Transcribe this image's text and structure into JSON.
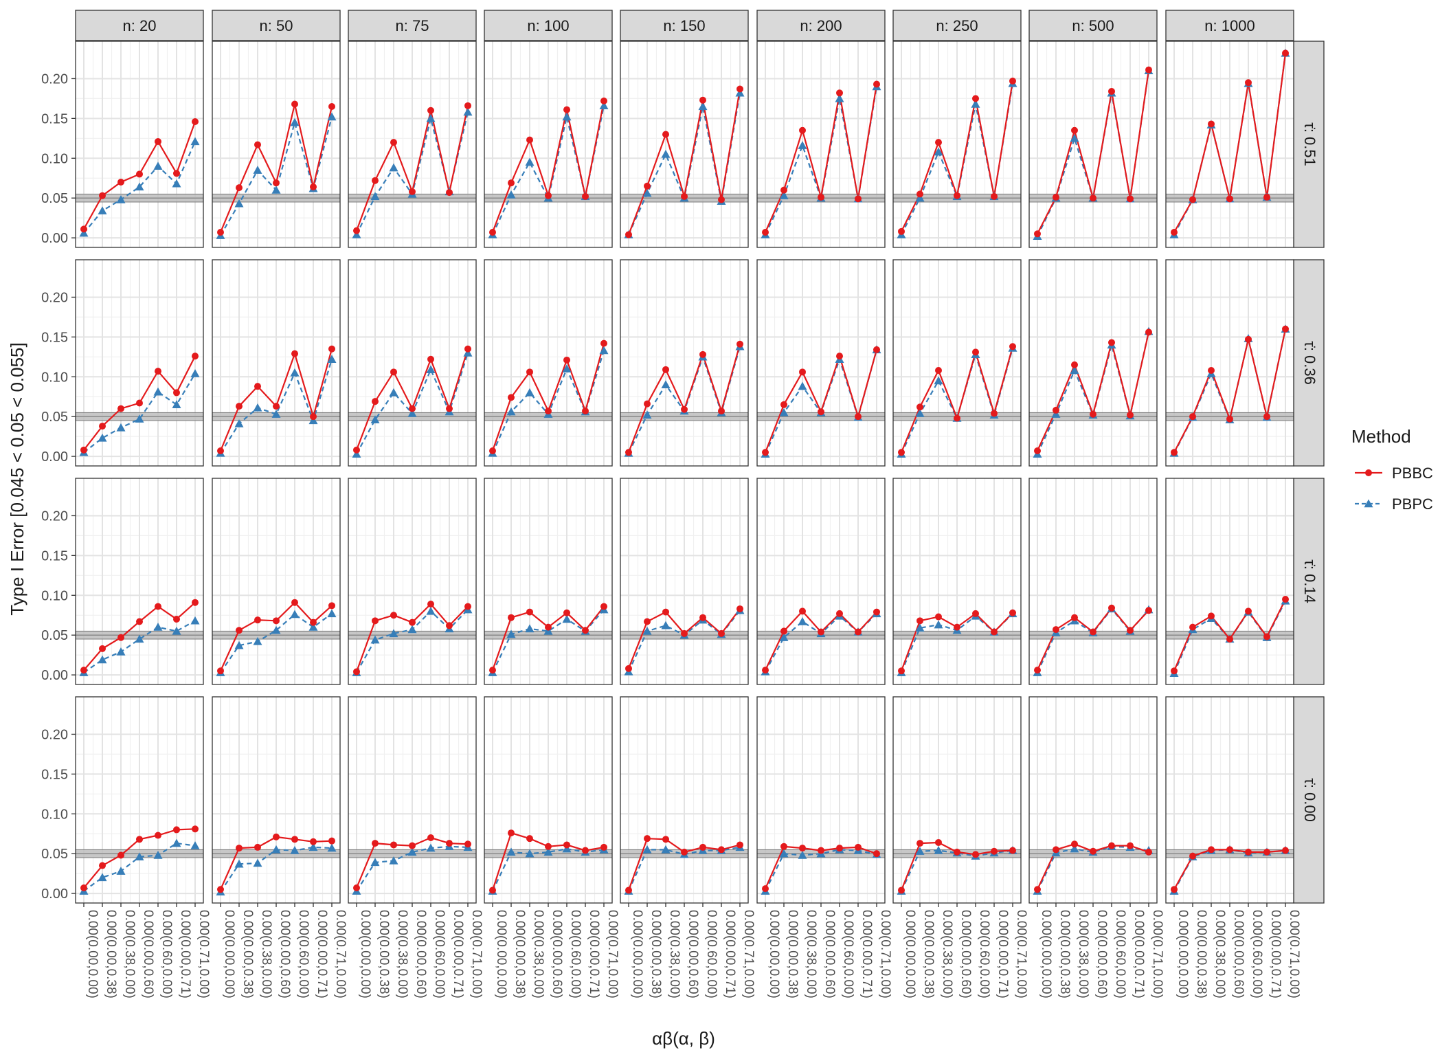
{
  "chart_data": {
    "type": "line",
    "ylabel": "Type I Error [0.045 < 0.05 < 0.055]",
    "xlabel": "αβ(α, β)",
    "ylim": [
      -0.012,
      0.247
    ],
    "y_ticks": [
      "0.00",
      "0.05",
      "0.10",
      "0.15",
      "0.20"
    ],
    "y_tick_values": [
      0,
      0.05,
      0.1,
      0.15,
      0.2
    ],
    "categories": [
      "0.00(0.00,0.00)",
      "0.00(0.00,0.38)",
      "0.00(0.38,0.00)",
      "0.00(0.00,0.60)",
      "0.00(0.60,0.00)",
      "0.00(0.00,0.71)",
      "0.00(0.71,0.00)"
    ],
    "reference_band": [
      0.045,
      0.055
    ],
    "reference_line": 0.05,
    "grid": true,
    "legend": {
      "title": "Method",
      "position": "right",
      "entries": [
        {
          "name": "PBBC",
          "color": "#e41a1c",
          "marker": "circle",
          "line": "solid"
        },
        {
          "name": "PBPC",
          "color": "#377eb8",
          "marker": "triangle",
          "line": "dashed"
        }
      ]
    },
    "col_facets": [
      "n: 20",
      "n: 50",
      "n: 75",
      "n: 100",
      "n: 150",
      "n: 200",
      "n: 250",
      "n: 500",
      "n: 1000"
    ],
    "row_facets": [
      "τ̇: 0.51",
      "τ̇: 0.36",
      "τ̇: 0.14",
      "τ̇: 0.00"
    ],
    "panels": [
      [
        {
          "PBBC": [
            0.011,
            0.053,
            0.07,
            0.08,
            0.121,
            0.081,
            0.146
          ],
          "PBPC": [
            0.006,
            0.034,
            0.048,
            0.064,
            0.09,
            0.068,
            0.121
          ]
        },
        {
          "PBBC": [
            0.007,
            0.063,
            0.117,
            0.069,
            0.168,
            0.064,
            0.165
          ],
          "PBPC": [
            0.003,
            0.043,
            0.085,
            0.06,
            0.145,
            0.062,
            0.152
          ]
        },
        {
          "PBBC": [
            0.009,
            0.072,
            0.12,
            0.058,
            0.16,
            0.057,
            0.166
          ],
          "PBPC": [
            0.004,
            0.052,
            0.088,
            0.055,
            0.15,
            0.058,
            0.158
          ]
        },
        {
          "PBBC": [
            0.007,
            0.069,
            0.123,
            0.053,
            0.161,
            0.052,
            0.172
          ],
          "PBPC": [
            0.004,
            0.054,
            0.095,
            0.05,
            0.152,
            0.052,
            0.166
          ]
        },
        {
          "PBBC": [
            0.004,
            0.065,
            0.13,
            0.052,
            0.173,
            0.048,
            0.187
          ],
          "PBPC": [
            0.004,
            0.056,
            0.105,
            0.05,
            0.165,
            0.046,
            0.182
          ]
        },
        {
          "PBBC": [
            0.007,
            0.06,
            0.135,
            0.051,
            0.182,
            0.049,
            0.193
          ],
          "PBPC": [
            0.004,
            0.053,
            0.116,
            0.05,
            0.175,
            0.049,
            0.19
          ]
        },
        {
          "PBBC": [
            0.008,
            0.055,
            0.12,
            0.053,
            0.175,
            0.052,
            0.197
          ],
          "PBPC": [
            0.004,
            0.05,
            0.108,
            0.052,
            0.168,
            0.052,
            0.194
          ]
        },
        {
          "PBBC": [
            0.005,
            0.051,
            0.135,
            0.05,
            0.184,
            0.049,
            0.211
          ],
          "PBPC": [
            0.002,
            0.05,
            0.125,
            0.05,
            0.182,
            0.049,
            0.21
          ]
        },
        {
          "PBBC": [
            0.007,
            0.048,
            0.143,
            0.049,
            0.195,
            0.051,
            0.232
          ],
          "PBPC": [
            0.004,
            0.048,
            0.142,
            0.049,
            0.194,
            0.051,
            0.232
          ]
        }
      ],
      [
        {
          "PBBC": [
            0.008,
            0.038,
            0.06,
            0.067,
            0.107,
            0.08,
            0.126
          ],
          "PBPC": [
            0.005,
            0.023,
            0.036,
            0.047,
            0.081,
            0.065,
            0.104
          ]
        },
        {
          "PBBC": [
            0.007,
            0.063,
            0.088,
            0.063,
            0.129,
            0.05,
            0.135
          ],
          "PBPC": [
            0.004,
            0.041,
            0.061,
            0.053,
            0.105,
            0.045,
            0.122
          ]
        },
        {
          "PBBC": [
            0.008,
            0.069,
            0.106,
            0.06,
            0.122,
            0.06,
            0.135
          ],
          "PBPC": [
            0.003,
            0.046,
            0.08,
            0.054,
            0.109,
            0.056,
            0.13
          ]
        },
        {
          "PBBC": [
            0.007,
            0.074,
            0.106,
            0.057,
            0.121,
            0.057,
            0.142
          ],
          "PBPC": [
            0.004,
            0.056,
            0.08,
            0.053,
            0.11,
            0.056,
            0.133
          ]
        },
        {
          "PBBC": [
            0.005,
            0.066,
            0.109,
            0.059,
            0.128,
            0.057,
            0.141
          ],
          "PBPC": [
            0.004,
            0.052,
            0.09,
            0.057,
            0.125,
            0.055,
            0.138
          ]
        },
        {
          "PBBC": [
            0.005,
            0.065,
            0.106,
            0.056,
            0.126,
            0.05,
            0.134
          ],
          "PBPC": [
            0.003,
            0.055,
            0.088,
            0.055,
            0.122,
            0.049,
            0.134
          ]
        },
        {
          "PBBC": [
            0.005,
            0.062,
            0.108,
            0.048,
            0.131,
            0.054,
            0.138
          ],
          "PBPC": [
            0.003,
            0.054,
            0.095,
            0.048,
            0.128,
            0.052,
            0.136
          ]
        },
        {
          "PBBC": [
            0.007,
            0.058,
            0.115,
            0.053,
            0.143,
            0.052,
            0.156
          ],
          "PBPC": [
            0.003,
            0.053,
            0.108,
            0.052,
            0.14,
            0.051,
            0.157
          ]
        },
        {
          "PBBC": [
            0.005,
            0.05,
            0.108,
            0.047,
            0.147,
            0.05,
            0.16
          ],
          "PBPC": [
            0.004,
            0.049,
            0.104,
            0.046,
            0.148,
            0.049,
            0.16
          ]
        }
      ],
      [
        {
          "PBBC": [
            0.006,
            0.033,
            0.047,
            0.067,
            0.086,
            0.07,
            0.091
          ],
          "PBPC": [
            0.003,
            0.019,
            0.029,
            0.045,
            0.06,
            0.055,
            0.068
          ]
        },
        {
          "PBBC": [
            0.005,
            0.056,
            0.069,
            0.068,
            0.091,
            0.066,
            0.087
          ],
          "PBPC": [
            0.003,
            0.037,
            0.042,
            0.056,
            0.076,
            0.06,
            0.077
          ]
        },
        {
          "PBBC": [
            0.004,
            0.068,
            0.075,
            0.066,
            0.089,
            0.062,
            0.086
          ],
          "PBPC": [
            0.003,
            0.044,
            0.052,
            0.057,
            0.08,
            0.058,
            0.082
          ]
        },
        {
          "PBBC": [
            0.006,
            0.072,
            0.079,
            0.06,
            0.078,
            0.056,
            0.086
          ],
          "PBPC": [
            0.003,
            0.051,
            0.058,
            0.055,
            0.07,
            0.055,
            0.082
          ]
        },
        {
          "PBBC": [
            0.008,
            0.067,
            0.079,
            0.052,
            0.072,
            0.052,
            0.083
          ],
          "PBPC": [
            0.004,
            0.055,
            0.062,
            0.05,
            0.069,
            0.051,
            0.081
          ]
        },
        {
          "PBBC": [
            0.006,
            0.055,
            0.08,
            0.054,
            0.077,
            0.054,
            0.079
          ],
          "PBPC": [
            0.004,
            0.047,
            0.067,
            0.052,
            0.074,
            0.054,
            0.077
          ]
        },
        {
          "PBBC": [
            0.005,
            0.068,
            0.073,
            0.06,
            0.077,
            0.054,
            0.078
          ],
          "PBPC": [
            0.003,
            0.059,
            0.063,
            0.056,
            0.074,
            0.054,
            0.077
          ]
        },
        {
          "PBBC": [
            0.006,
            0.057,
            0.072,
            0.054,
            0.084,
            0.056,
            0.081
          ],
          "PBPC": [
            0.003,
            0.053,
            0.068,
            0.053,
            0.083,
            0.055,
            0.082
          ]
        },
        {
          "PBBC": [
            0.005,
            0.06,
            0.074,
            0.045,
            0.08,
            0.048,
            0.095
          ],
          "PBPC": [
            0.002,
            0.057,
            0.071,
            0.045,
            0.079,
            0.047,
            0.093
          ]
        }
      ],
      [
        {
          "PBBC": [
            0.007,
            0.035,
            0.048,
            0.068,
            0.073,
            0.08,
            0.081
          ],
          "PBPC": [
            0.003,
            0.02,
            0.028,
            0.046,
            0.048,
            0.063,
            0.06
          ]
        },
        {
          "PBBC": [
            0.005,
            0.057,
            0.058,
            0.071,
            0.068,
            0.065,
            0.066
          ],
          "PBPC": [
            0.002,
            0.037,
            0.038,
            0.055,
            0.054,
            0.058,
            0.057
          ]
        },
        {
          "PBBC": [
            0.007,
            0.063,
            0.061,
            0.06,
            0.07,
            0.063,
            0.062
          ],
          "PBPC": [
            0.003,
            0.039,
            0.041,
            0.052,
            0.057,
            0.059,
            0.058
          ]
        },
        {
          "PBBC": [
            0.004,
            0.076,
            0.069,
            0.059,
            0.061,
            0.054,
            0.058
          ],
          "PBPC": [
            0.003,
            0.052,
            0.05,
            0.052,
            0.056,
            0.052,
            0.055
          ]
        },
        {
          "PBBC": [
            0.004,
            0.069,
            0.068,
            0.052,
            0.058,
            0.055,
            0.061
          ],
          "PBPC": [
            0.003,
            0.055,
            0.055,
            0.049,
            0.054,
            0.054,
            0.058
          ]
        },
        {
          "PBBC": [
            0.006,
            0.059,
            0.057,
            0.054,
            0.057,
            0.058,
            0.05
          ],
          "PBPC": [
            0.003,
            0.05,
            0.048,
            0.05,
            0.055,
            0.054,
            0.049
          ]
        },
        {
          "PBBC": [
            0.004,
            0.063,
            0.064,
            0.052,
            0.049,
            0.053,
            0.054
          ],
          "PBPC": [
            0.003,
            0.053,
            0.054,
            0.051,
            0.047,
            0.051,
            0.054
          ]
        },
        {
          "PBBC": [
            0.005,
            0.055,
            0.062,
            0.053,
            0.06,
            0.06,
            0.052
          ],
          "PBPC": [
            0.003,
            0.051,
            0.056,
            0.052,
            0.059,
            0.058,
            0.054
          ]
        },
        {
          "PBBC": [
            0.005,
            0.047,
            0.055,
            0.055,
            0.052,
            0.052,
            0.054
          ],
          "PBPC": [
            0.003,
            0.046,
            0.054,
            0.055,
            0.051,
            0.052,
            0.054
          ]
        }
      ]
    ]
  }
}
